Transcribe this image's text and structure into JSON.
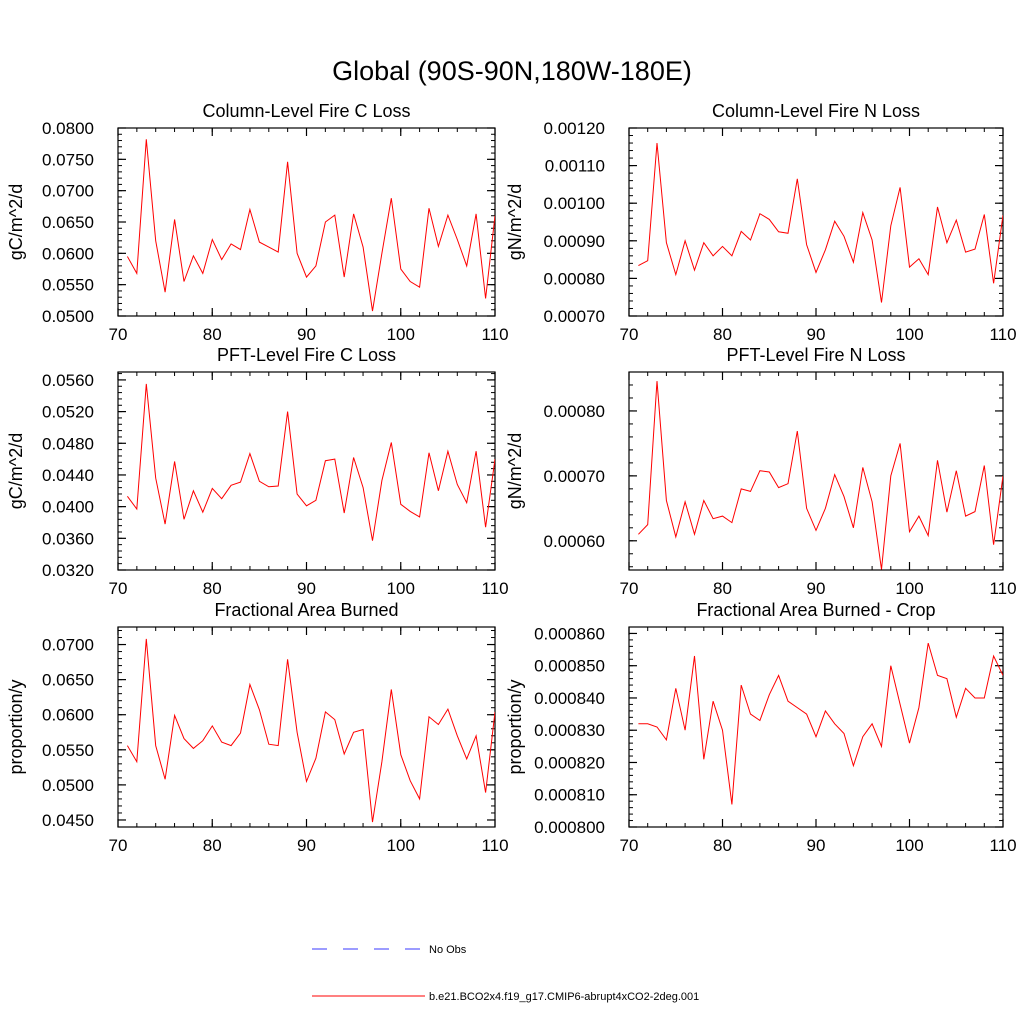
{
  "page_title": "Global (90S-90N,180W-180E)",
  "legend": {
    "items": [
      {
        "label": "No Obs",
        "color": "#3a3aff",
        "dash": true
      },
      {
        "label": "b.e21.BCO2x4.f19_g17.CMIP6-abrupt4xCO2-2deg.001",
        "color": "#ff0000",
        "dash": false
      }
    ]
  },
  "chart_data": [
    {
      "type": "line",
      "title": "Column-Level Fire C Loss",
      "ylabel": "gC/m^2/d",
      "xlim": [
        70,
        110
      ],
      "xticks": [
        70,
        80,
        90,
        100,
        110
      ],
      "xtick_labels": [
        "70",
        "80",
        "90",
        "100",
        "110"
      ],
      "ylim": [
        0.05,
        0.08
      ],
      "yticks": [
        0.05,
        0.055,
        0.06,
        0.065,
        0.07,
        0.075,
        0.08
      ],
      "ytick_labels": [
        "0.0500",
        "0.0550",
        "0.0600",
        "0.0650",
        "0.0700",
        "0.0750",
        "0.0800"
      ],
      "series": [
        {
          "name": "b.e21.BCO2x4.f19_g17.CMIP6-abrupt4xCO2-2deg.001",
          "color": "#ff0000",
          "x": [
            71,
            72,
            73,
            74,
            75,
            76,
            77,
            78,
            79,
            80,
            81,
            82,
            83,
            84,
            85,
            86,
            87,
            88,
            89,
            90,
            91,
            92,
            93,
            94,
            95,
            96,
            97,
            98,
            99,
            100,
            101,
            102,
            103,
            104,
            105,
            106,
            107,
            108,
            109,
            110
          ],
          "y": [
            0.0595,
            0.0568,
            0.0782,
            0.062,
            0.0538,
            0.0654,
            0.0555,
            0.0596,
            0.0568,
            0.0622,
            0.059,
            0.0615,
            0.0606,
            0.067,
            0.0618,
            0.061,
            0.0602,
            0.0746,
            0.06,
            0.0562,
            0.058,
            0.065,
            0.0661,
            0.0562,
            0.0663,
            0.061,
            0.0508,
            0.06,
            0.0688,
            0.0575,
            0.0555,
            0.0546,
            0.0672,
            0.0611,
            0.0661,
            0.0622,
            0.058,
            0.0663,
            0.0528,
            0.066
          ]
        }
      ]
    },
    {
      "type": "line",
      "title": "Column-Level Fire N Loss",
      "ylabel": "gN/m^2/d",
      "xlim": [
        70,
        110
      ],
      "xticks": [
        70,
        80,
        90,
        100,
        110
      ],
      "xtick_labels": [
        "70",
        "80",
        "90",
        "100",
        "110"
      ],
      "ylim": [
        0.0007,
        0.0012
      ],
      "yticks": [
        0.0007,
        0.0008,
        0.0009,
        0.001,
        0.0011,
        0.0012
      ],
      "ytick_labels": [
        "0.00070",
        "0.00080",
        "0.00090",
        "0.00100",
        "0.00110",
        "0.00120"
      ],
      "series": [
        {
          "name": "b.e21.BCO2x4.f19_g17.CMIP6-abrupt4xCO2-2deg.001",
          "color": "#ff0000",
          "x": [
            71,
            72,
            73,
            74,
            75,
            76,
            77,
            78,
            79,
            80,
            81,
            82,
            83,
            84,
            85,
            86,
            87,
            88,
            89,
            90,
            91,
            92,
            93,
            94,
            95,
            96,
            97,
            98,
            99,
            100,
            101,
            102,
            103,
            104,
            105,
            106,
            107,
            108,
            109,
            110
          ],
          "y": [
            0.000834,
            0.000847,
            0.00116,
            0.000895,
            0.00081,
            0.0009,
            0.000822,
            0.000895,
            0.00086,
            0.000885,
            0.00086,
            0.000925,
            0.000902,
            0.000972,
            0.000957,
            0.000924,
            0.00092,
            0.001065,
            0.00089,
            0.000816,
            0.000876,
            0.000952,
            0.000912,
            0.000843,
            0.000975,
            0.000902,
            0.000736,
            0.00094,
            0.001042,
            0.00083,
            0.000852,
            0.00081,
            0.00099,
            0.000895,
            0.000955,
            0.00087,
            0.000878,
            0.00097,
            0.000787,
            0.000968
          ]
        }
      ]
    },
    {
      "type": "line",
      "title": "PFT-Level Fire C Loss",
      "ylabel": "gC/m^2/d",
      "xlim": [
        70,
        110
      ],
      "xticks": [
        70,
        80,
        90,
        100,
        110
      ],
      "xtick_labels": [
        "70",
        "80",
        "90",
        "100",
        "110"
      ],
      "ylim": [
        0.032,
        0.057
      ],
      "yticks": [
        0.032,
        0.036,
        0.04,
        0.044,
        0.048,
        0.052,
        0.056
      ],
      "ytick_labels": [
        "0.0320",
        "0.0360",
        "0.0400",
        "0.0440",
        "0.0480",
        "0.0520",
        "0.0560"
      ],
      "series": [
        {
          "name": "b.e21.BCO2x4.f19_g17.CMIP6-abrupt4xCO2-2deg.001",
          "color": "#ff0000",
          "x": [
            71,
            72,
            73,
            74,
            75,
            76,
            77,
            78,
            79,
            80,
            81,
            82,
            83,
            84,
            85,
            86,
            87,
            88,
            89,
            90,
            91,
            92,
            93,
            94,
            95,
            96,
            97,
            98,
            99,
            100,
            101,
            102,
            103,
            104,
            105,
            106,
            107,
            108,
            109,
            110
          ],
          "y": [
            0.0413,
            0.0397,
            0.0555,
            0.0436,
            0.0378,
            0.0457,
            0.0384,
            0.042,
            0.0393,
            0.0423,
            0.041,
            0.0427,
            0.0431,
            0.0467,
            0.0432,
            0.0425,
            0.0426,
            0.052,
            0.0416,
            0.0401,
            0.0408,
            0.0458,
            0.046,
            0.0392,
            0.0462,
            0.0424,
            0.0357,
            0.0433,
            0.0481,
            0.0403,
            0.0394,
            0.0387,
            0.0468,
            0.042,
            0.047,
            0.0428,
            0.0405,
            0.047,
            0.0374,
            0.046
          ]
        }
      ]
    },
    {
      "type": "line",
      "title": "PFT-Level Fire N Loss",
      "ylabel": "gN/m^2/d",
      "xlim": [
        70,
        110
      ],
      "xticks": [
        70,
        80,
        90,
        100,
        110
      ],
      "xtick_labels": [
        "70",
        "80",
        "90",
        "100",
        "110"
      ],
      "ylim": [
        0.000555,
        0.00086
      ],
      "yticks": [
        0.0006,
        0.0007,
        0.0008
      ],
      "ytick_labels": [
        "0.00060",
        "0.00070",
        "0.00080"
      ],
      "series": [
        {
          "name": "b.e21.BCO2x4.f19_g17.CMIP6-abrupt4xCO2-2deg.001",
          "color": "#ff0000",
          "x": [
            71,
            72,
            73,
            74,
            75,
            76,
            77,
            78,
            79,
            80,
            81,
            82,
            83,
            84,
            85,
            86,
            87,
            88,
            89,
            90,
            91,
            92,
            93,
            94,
            95,
            96,
            97,
            98,
            99,
            100,
            101,
            102,
            103,
            104,
            105,
            106,
            107,
            108,
            109,
            110
          ],
          "y": [
            0.00061,
            0.000625,
            0.000846,
            0.000662,
            0.000606,
            0.00066,
            0.00061,
            0.000662,
            0.000634,
            0.000638,
            0.000628,
            0.00068,
            0.000676,
            0.000708,
            0.000706,
            0.000682,
            0.000688,
            0.000769,
            0.00065,
            0.000616,
            0.00065,
            0.000702,
            0.000668,
            0.00062,
            0.000713,
            0.00066,
            0.000556,
            0.0007,
            0.00075,
            0.000614,
            0.000638,
            0.000608,
            0.000724,
            0.000644,
            0.000708,
            0.000638,
            0.000645,
            0.000716,
            0.000594,
            0.0007
          ]
        }
      ]
    },
    {
      "type": "line",
      "title": "Fractional Area Burned",
      "ylabel": "proportion/y",
      "xlim": [
        70,
        110
      ],
      "xticks": [
        70,
        80,
        90,
        100,
        110
      ],
      "xtick_labels": [
        "70",
        "80",
        "90",
        "100",
        "110"
      ],
      "ylim": [
        0.044,
        0.0725
      ],
      "yticks": [
        0.045,
        0.05,
        0.055,
        0.06,
        0.065,
        0.07
      ],
      "ytick_labels": [
        "0.0450",
        "0.0500",
        "0.0550",
        "0.0600",
        "0.0650",
        "0.0700"
      ],
      "series": [
        {
          "name": "b.e21.BCO2x4.f19_g17.CMIP6-abrupt4xCO2-2deg.001",
          "color": "#ff0000",
          "x": [
            71,
            72,
            73,
            74,
            75,
            76,
            77,
            78,
            79,
            80,
            81,
            82,
            83,
            84,
            85,
            86,
            87,
            88,
            89,
            90,
            91,
            92,
            93,
            94,
            95,
            96,
            97,
            98,
            99,
            100,
            101,
            102,
            103,
            104,
            105,
            106,
            107,
            108,
            109,
            110
          ],
          "y": [
            0.0556,
            0.0533,
            0.0708,
            0.0556,
            0.0508,
            0.0599,
            0.0566,
            0.0552,
            0.0563,
            0.0584,
            0.0561,
            0.0556,
            0.0574,
            0.0643,
            0.0607,
            0.0558,
            0.0556,
            0.0679,
            0.0575,
            0.0505,
            0.0538,
            0.0604,
            0.0593,
            0.0544,
            0.0575,
            0.0579,
            0.0447,
            0.0533,
            0.0636,
            0.0543,
            0.0506,
            0.048,
            0.0597,
            0.0586,
            0.0608,
            0.057,
            0.0537,
            0.057,
            0.0489,
            0.0604
          ]
        }
      ]
    },
    {
      "type": "line",
      "title": "Fractional Area Burned - Crop",
      "ylabel": "proportion/y",
      "xlim": [
        70,
        110
      ],
      "xticks": [
        70,
        80,
        90,
        100,
        110
      ],
      "xtick_labels": [
        "70",
        "80",
        "90",
        "100",
        "110"
      ],
      "ylim": [
        0.0008,
        0.000862
      ],
      "yticks": [
        0.0008,
        0.00081,
        0.00082,
        0.00083,
        0.00084,
        0.00085,
        0.00086
      ],
      "ytick_labels": [
        "0.000800",
        "0.000810",
        "0.000820",
        "0.000830",
        "0.000840",
        "0.000850",
        "0.000860"
      ],
      "series": [
        {
          "name": "b.e21.BCO2x4.f19_g17.CMIP6-abrupt4xCO2-2deg.001",
          "color": "#ff0000",
          "x": [
            71,
            72,
            73,
            74,
            75,
            76,
            77,
            78,
            79,
            80,
            81,
            82,
            83,
            84,
            85,
            86,
            87,
            88,
            89,
            90,
            91,
            92,
            93,
            94,
            95,
            96,
            97,
            98,
            99,
            100,
            101,
            102,
            103,
            104,
            105,
            106,
            107,
            108,
            109,
            110
          ],
          "y": [
            0.000832,
            0.000832,
            0.000831,
            0.000827,
            0.000843,
            0.00083,
            0.000853,
            0.000821,
            0.000839,
            0.00083,
            0.000807,
            0.000844,
            0.000835,
            0.000833,
            0.000841,
            0.000847,
            0.000839,
            0.000837,
            0.000835,
            0.000828,
            0.000836,
            0.000832,
            0.000829,
            0.000819,
            0.000828,
            0.000832,
            0.000825,
            0.00085,
            0.000838,
            0.000826,
            0.000837,
            0.000857,
            0.000847,
            0.000846,
            0.000834,
            0.000843,
            0.00084,
            0.00084,
            0.000853,
            0.000847
          ]
        }
      ]
    }
  ]
}
